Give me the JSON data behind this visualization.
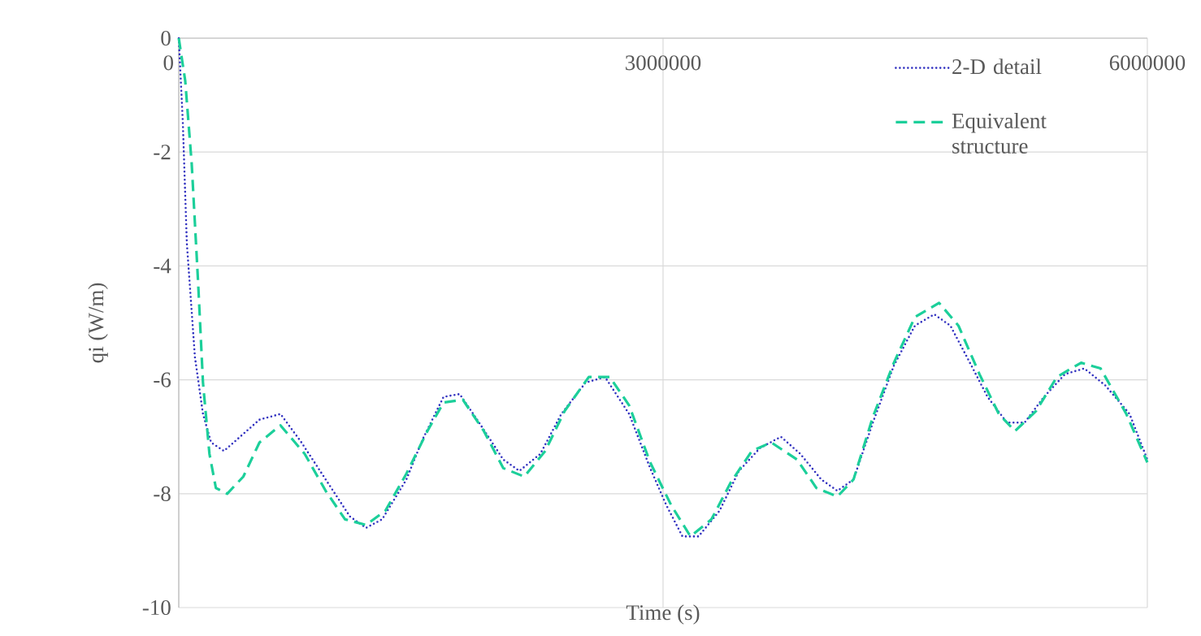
{
  "chart_data": {
    "type": "line",
    "xlabel": "Time (s)",
    "ylabel": "qi (W/m)",
    "xlim": [
      0,
      6000000
    ],
    "ylim": [
      -10,
      0
    ],
    "xticks": [
      0,
      3000000,
      6000000
    ],
    "yticks": [
      -10,
      -8,
      -6,
      -4,
      -2,
      0
    ],
    "grid": true,
    "legend": "top right",
    "series": [
      {
        "name": "2-D detail",
        "color": "#3232c0",
        "line_style": "dotted",
        "x": [
          0,
          25000,
          50000,
          100000,
          150000,
          200000,
          280000,
          380000,
          500000,
          630000,
          760000,
          910000,
          1060000,
          1160000,
          1260000,
          1410000,
          1510000,
          1640000,
          1740000,
          1860000,
          2010000,
          2110000,
          2240000,
          2370000,
          2520000,
          2640000,
          2790000,
          2920000,
          3020000,
          3120000,
          3220000,
          3350000,
          3470000,
          3600000,
          3730000,
          3850000,
          3980000,
          4080000,
          4180000,
          4300000,
          4430000,
          4560000,
          4680000,
          4780000,
          4910000,
          5010000,
          5130000,
          5240000,
          5360000,
          5490000,
          5610000,
          5740000,
          5890000,
          6000000
        ],
        "values": [
          0,
          -1.47,
          -3.6,
          -5.6,
          -6.6,
          -7.1,
          -7.25,
          -7.0,
          -6.7,
          -6.6,
          -7.1,
          -7.75,
          -8.4,
          -8.6,
          -8.45,
          -7.75,
          -7.05,
          -6.3,
          -6.25,
          -6.75,
          -7.4,
          -7.6,
          -7.3,
          -6.6,
          -6.05,
          -5.95,
          -6.6,
          -7.55,
          -8.2,
          -8.75,
          -8.75,
          -8.3,
          -7.6,
          -7.2,
          -7.0,
          -7.3,
          -7.75,
          -7.95,
          -7.75,
          -6.75,
          -5.75,
          -5.05,
          -4.85,
          -5.05,
          -5.75,
          -6.3,
          -6.75,
          -6.75,
          -6.3,
          -5.9,
          -5.8,
          -6.1,
          -6.6,
          -7.4
        ]
      },
      {
        "name": "Equivalent structure",
        "color": "#1ccf9a",
        "line_style": "dashed",
        "x": [
          0,
          40000,
          80000,
          120000,
          150000,
          190000,
          230000,
          300000,
          400000,
          500000,
          630000,
          780000,
          910000,
          1030000,
          1160000,
          1280000,
          1410000,
          1540000,
          1640000,
          1760000,
          1890000,
          2010000,
          2140000,
          2270000,
          2390000,
          2540000,
          2670000,
          2790000,
          2920000,
          3050000,
          3170000,
          3300000,
          3420000,
          3550000,
          3670000,
          3830000,
          3950000,
          4080000,
          4180000,
          4300000,
          4430000,
          4560000,
          4710000,
          4830000,
          4960000,
          5080000,
          5180000,
          5310000,
          5440000,
          5590000,
          5710000,
          5870000,
          6000000
        ],
        "values": [
          0,
          -0.75,
          -2.2,
          -4.3,
          -6.05,
          -7.3,
          -7.9,
          -8.0,
          -7.7,
          -7.1,
          -6.8,
          -7.3,
          -7.95,
          -8.45,
          -8.55,
          -8.3,
          -7.65,
          -6.9,
          -6.4,
          -6.35,
          -6.9,
          -7.55,
          -7.7,
          -7.25,
          -6.55,
          -5.95,
          -5.95,
          -6.45,
          -7.45,
          -8.2,
          -8.75,
          -8.45,
          -7.8,
          -7.25,
          -7.1,
          -7.4,
          -7.9,
          -8.05,
          -7.75,
          -6.65,
          -5.7,
          -4.9,
          -4.65,
          -5.05,
          -5.9,
          -6.6,
          -6.9,
          -6.55,
          -5.95,
          -5.7,
          -5.8,
          -6.6,
          -7.45
        ]
      }
    ]
  }
}
